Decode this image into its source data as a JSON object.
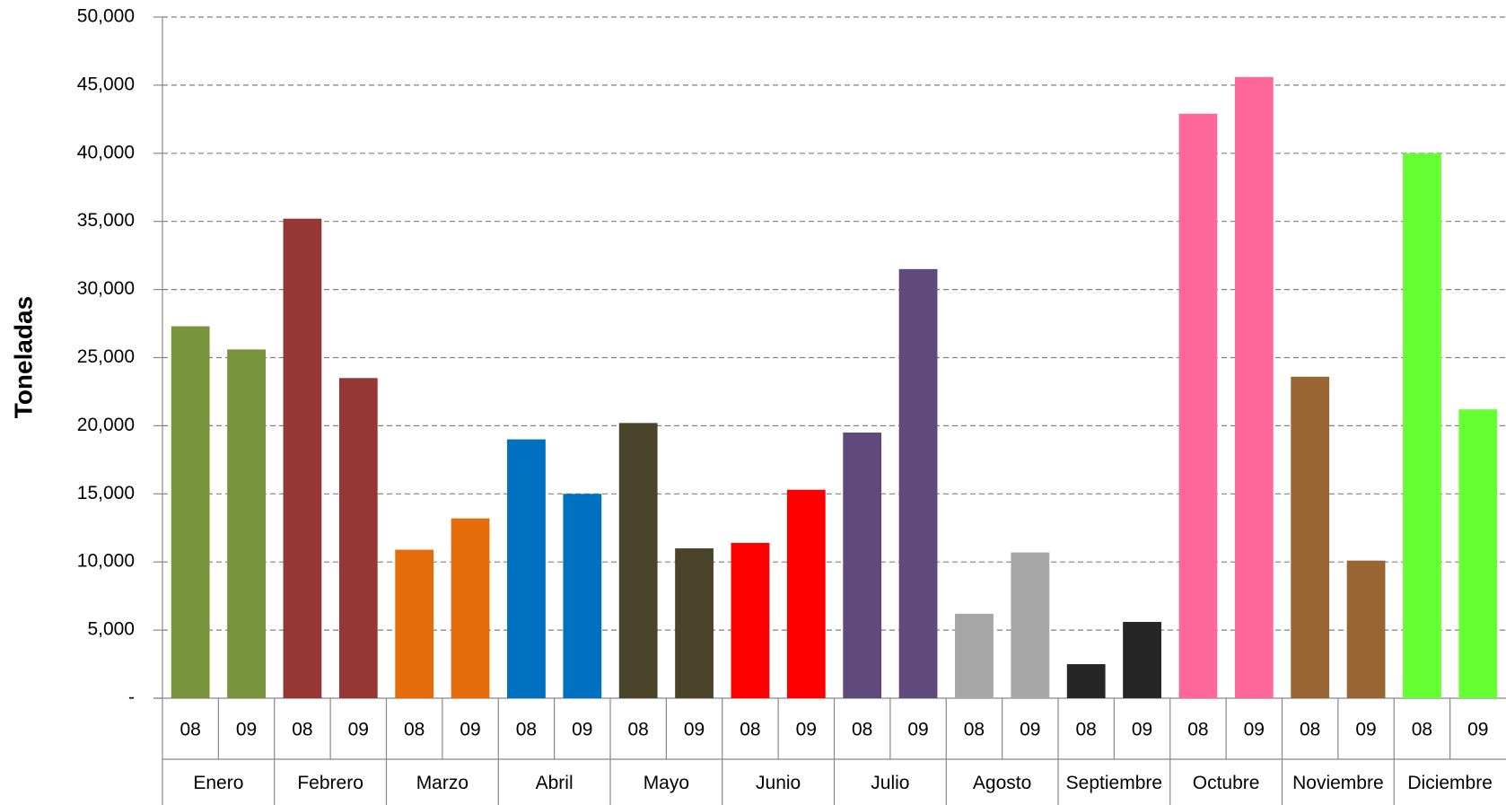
{
  "chart_data": {
    "type": "bar",
    "y_label": "Toneladas",
    "categories": [
      "Enero",
      "Febrero",
      "Marzo",
      "Abril",
      "Mayo",
      "Junio",
      "Julio",
      "Agosto",
      "Septiembre",
      "Octubre",
      "Noviembre",
      "Diciembre"
    ],
    "colors": [
      "#77933c",
      "#953735",
      "#e46c0a",
      "#0070c0",
      "#4a452a",
      "#ff0000",
      "#604a7b",
      "#a6a6a6",
      "#262626",
      "#ff6699",
      "#996633",
      "#66ff33"
    ],
    "series": [
      {
        "name": "08",
        "values": [
          27300,
          35200,
          10900,
          19000,
          20200,
          11400,
          19500,
          6200,
          2500,
          42900,
          23600,
          40000
        ]
      },
      {
        "name": "09",
        "values": [
          25600,
          23500,
          13200,
          15000,
          11000,
          15300,
          31500,
          10700,
          5600,
          45600,
          10100,
          21200
        ]
      }
    ],
    "ylim": [
      0,
      50000
    ],
    "yticks": [
      {
        "value": 0,
        "label": "-"
      },
      {
        "value": 5000,
        "label": "5,000"
      },
      {
        "value": 10000,
        "label": "10,000"
      },
      {
        "value": 15000,
        "label": "15,000"
      },
      {
        "value": 20000,
        "label": "20,000"
      },
      {
        "value": 25000,
        "label": "25,000"
      },
      {
        "value": 30000,
        "label": "30,000"
      },
      {
        "value": 35000,
        "label": "35,000"
      },
      {
        "value": 40000,
        "label": "40,000"
      },
      {
        "value": 45000,
        "label": "45,000"
      },
      {
        "value": 50000,
        "label": "50,000"
      }
    ],
    "grid": true
  }
}
